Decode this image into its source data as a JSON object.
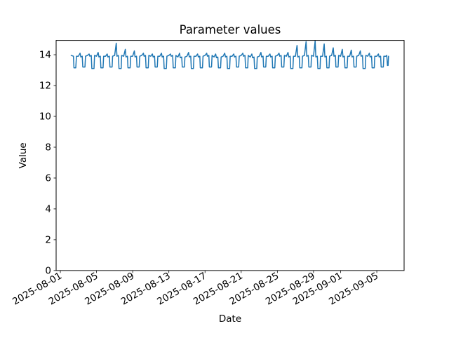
{
  "chart_data": {
    "type": "line",
    "title": "Parameter values",
    "xlabel": "Date",
    "ylabel": "Value",
    "line_color": "#1f77b4",
    "background_color": "#ffffff",
    "grid": false,
    "legend": null,
    "x_unit": "days since 2025-08-01 00:00",
    "x_tick_labels": [
      "2025-08-01",
      "2025-08-05",
      "2025-08-09",
      "2025-08-13",
      "2025-08-17",
      "2025-08-21",
      "2025-08-25",
      "2025-08-29",
      "2025-09-01",
      "2025-09-05"
    ],
    "x_tick_day_offsets": [
      0,
      4,
      8,
      12,
      16,
      20,
      24,
      28,
      31,
      35
    ],
    "y_ticks": [
      0,
      2,
      4,
      6,
      8,
      10,
      12,
      14
    ],
    "xlim_day_offsets": [
      -0.47,
      38.02
    ],
    "ylim": [
      0,
      14.93
    ],
    "points": [
      [
        1.2,
        13.95
      ],
      [
        1.45,
        13.9
      ],
      [
        1.5,
        13.15
      ],
      [
        1.7,
        13.15
      ],
      [
        1.78,
        13.9
      ],
      [
        2,
        13.9
      ],
      [
        2.18,
        14.1
      ],
      [
        2.26,
        13.85
      ],
      [
        2.42,
        13.9
      ],
      [
        2.48,
        13.2
      ],
      [
        2.72,
        13.2
      ],
      [
        2.78,
        13.9
      ],
      [
        3,
        13.95
      ],
      [
        3.18,
        14.05
      ],
      [
        3.26,
        13.9
      ],
      [
        3.42,
        13.95
      ],
      [
        3.48,
        13.1
      ],
      [
        3.72,
        13.1
      ],
      [
        3.78,
        13.95
      ],
      [
        4,
        13.9
      ],
      [
        4.18,
        14.15
      ],
      [
        4.26,
        13.85
      ],
      [
        4.42,
        13.9
      ],
      [
        4.48,
        13.15
      ],
      [
        4.72,
        13.15
      ],
      [
        4.78,
        13.9
      ],
      [
        5,
        13.9
      ],
      [
        5.18,
        14.05
      ],
      [
        5.26,
        13.85
      ],
      [
        5.42,
        13.9
      ],
      [
        5.48,
        13.2
      ],
      [
        5.72,
        13.2
      ],
      [
        5.78,
        13.9
      ],
      [
        6,
        13.95
      ],
      [
        6.18,
        14.75
      ],
      [
        6.26,
        13.9
      ],
      [
        6.42,
        13.95
      ],
      [
        6.48,
        13.1
      ],
      [
        6.72,
        13.1
      ],
      [
        6.78,
        13.95
      ],
      [
        7,
        13.9
      ],
      [
        7.18,
        14.35
      ],
      [
        7.26,
        13.85
      ],
      [
        7.42,
        13.9
      ],
      [
        7.48,
        13.15
      ],
      [
        7.72,
        13.15
      ],
      [
        7.78,
        13.9
      ],
      [
        8,
        13.9
      ],
      [
        8.18,
        14.25
      ],
      [
        8.26,
        13.85
      ],
      [
        8.42,
        13.9
      ],
      [
        8.48,
        13.2
      ],
      [
        8.72,
        13.2
      ],
      [
        8.78,
        13.9
      ],
      [
        9,
        13.95
      ],
      [
        9.18,
        14.1
      ],
      [
        9.26,
        13.9
      ],
      [
        9.42,
        13.95
      ],
      [
        9.48,
        13.15
      ],
      [
        9.72,
        13.15
      ],
      [
        9.78,
        13.95
      ],
      [
        10,
        13.9
      ],
      [
        10.18,
        14.05
      ],
      [
        10.26,
        13.85
      ],
      [
        10.42,
        13.9
      ],
      [
        10.48,
        13.2
      ],
      [
        10.72,
        13.2
      ],
      [
        10.78,
        13.9
      ],
      [
        11,
        13.9
      ],
      [
        11.18,
        14.1
      ],
      [
        11.26,
        13.85
      ],
      [
        11.42,
        13.9
      ],
      [
        11.48,
        13.1
      ],
      [
        11.72,
        13.1
      ],
      [
        11.78,
        13.9
      ],
      [
        12,
        13.95
      ],
      [
        12.18,
        14.05
      ],
      [
        12.26,
        13.9
      ],
      [
        12.42,
        13.95
      ],
      [
        12.48,
        13.15
      ],
      [
        12.72,
        13.15
      ],
      [
        12.78,
        13.95
      ],
      [
        13,
        13.85
      ],
      [
        13.18,
        14.1
      ],
      [
        13.26,
        13.8
      ],
      [
        13.42,
        13.85
      ],
      [
        13.48,
        13.2
      ],
      [
        13.72,
        13.2
      ],
      [
        13.78,
        13.85
      ],
      [
        14,
        13.9
      ],
      [
        14.18,
        14.15
      ],
      [
        14.26,
        13.85
      ],
      [
        14.42,
        13.9
      ],
      [
        14.48,
        13.1
      ],
      [
        14.72,
        13.1
      ],
      [
        14.78,
        13.9
      ],
      [
        15,
        13.9
      ],
      [
        15.18,
        14.05
      ],
      [
        15.26,
        13.85
      ],
      [
        15.42,
        13.9
      ],
      [
        15.48,
        13.15
      ],
      [
        15.72,
        13.15
      ],
      [
        15.78,
        13.9
      ],
      [
        16,
        13.95
      ],
      [
        16.18,
        14.1
      ],
      [
        16.26,
        13.9
      ],
      [
        16.42,
        13.95
      ],
      [
        16.48,
        13.2
      ],
      [
        16.72,
        13.2
      ],
      [
        16.78,
        13.95
      ],
      [
        17,
        13.85
      ],
      [
        17.18,
        14.05
      ],
      [
        17.26,
        13.8
      ],
      [
        17.42,
        13.85
      ],
      [
        17.48,
        13.15
      ],
      [
        17.72,
        13.15
      ],
      [
        17.78,
        13.85
      ],
      [
        18,
        13.9
      ],
      [
        18.18,
        14.1
      ],
      [
        18.26,
        13.85
      ],
      [
        18.42,
        13.9
      ],
      [
        18.48,
        13.1
      ],
      [
        18.72,
        13.1
      ],
      [
        18.78,
        13.9
      ],
      [
        19,
        13.9
      ],
      [
        19.18,
        14.05
      ],
      [
        19.26,
        13.85
      ],
      [
        19.42,
        13.9
      ],
      [
        19.48,
        13.2
      ],
      [
        19.72,
        13.2
      ],
      [
        19.78,
        13.9
      ],
      [
        20,
        13.95
      ],
      [
        20.18,
        14.1
      ],
      [
        20.26,
        13.9
      ],
      [
        20.42,
        13.95
      ],
      [
        20.48,
        13.15
      ],
      [
        20.72,
        13.15
      ],
      [
        20.78,
        13.95
      ],
      [
        21,
        13.85
      ],
      [
        21.18,
        14.05
      ],
      [
        21.26,
        13.8
      ],
      [
        21.42,
        13.85
      ],
      [
        21.48,
        13.1
      ],
      [
        21.72,
        13.1
      ],
      [
        21.78,
        13.85
      ],
      [
        22,
        13.9
      ],
      [
        22.18,
        14.15
      ],
      [
        22.26,
        13.85
      ],
      [
        22.42,
        13.9
      ],
      [
        22.48,
        13.2
      ],
      [
        22.72,
        13.2
      ],
      [
        22.78,
        13.9
      ],
      [
        23,
        13.9
      ],
      [
        23.18,
        14.05
      ],
      [
        23.26,
        13.85
      ],
      [
        23.42,
        13.9
      ],
      [
        23.48,
        13.15
      ],
      [
        23.72,
        13.15
      ],
      [
        23.78,
        13.9
      ],
      [
        24,
        13.95
      ],
      [
        24.18,
        14.1
      ],
      [
        24.26,
        13.9
      ],
      [
        24.42,
        13.95
      ],
      [
        24.48,
        13.2
      ],
      [
        24.72,
        13.2
      ],
      [
        24.78,
        13.95
      ],
      [
        25,
        13.9
      ],
      [
        25.18,
        14.15
      ],
      [
        25.26,
        13.85
      ],
      [
        25.42,
        13.9
      ],
      [
        25.48,
        13.1
      ],
      [
        25.72,
        13.1
      ],
      [
        25.78,
        13.9
      ],
      [
        26,
        13.9
      ],
      [
        26.18,
        14.6
      ],
      [
        26.26,
        13.85
      ],
      [
        26.42,
        13.9
      ],
      [
        26.48,
        13.15
      ],
      [
        26.72,
        13.15
      ],
      [
        26.78,
        13.9
      ],
      [
        27,
        13.95
      ],
      [
        27.18,
        14.85
      ],
      [
        27.26,
        13.9
      ],
      [
        27.42,
        13.95
      ],
      [
        27.48,
        13.2
      ],
      [
        27.72,
        13.2
      ],
      [
        27.78,
        13.95
      ],
      [
        28,
        13.9
      ],
      [
        28.18,
        14.9
      ],
      [
        28.26,
        13.85
      ],
      [
        28.42,
        13.9
      ],
      [
        28.48,
        13.1
      ],
      [
        28.72,
        13.1
      ],
      [
        28.78,
        13.9
      ],
      [
        29,
        13.9
      ],
      [
        29.18,
        14.7
      ],
      [
        29.26,
        13.85
      ],
      [
        29.42,
        13.9
      ],
      [
        29.48,
        13.15
      ],
      [
        29.72,
        13.15
      ],
      [
        29.78,
        13.9
      ],
      [
        30,
        13.95
      ],
      [
        30.18,
        14.45
      ],
      [
        30.26,
        13.9
      ],
      [
        30.42,
        13.95
      ],
      [
        30.48,
        13.2
      ],
      [
        30.72,
        13.2
      ],
      [
        30.78,
        13.95
      ],
      [
        31,
        13.9
      ],
      [
        31.18,
        14.35
      ],
      [
        31.26,
        13.85
      ],
      [
        31.42,
        13.9
      ],
      [
        31.48,
        13.15
      ],
      [
        31.72,
        13.15
      ],
      [
        31.78,
        13.9
      ],
      [
        32,
        13.9
      ],
      [
        32.18,
        14.3
      ],
      [
        32.26,
        13.85
      ],
      [
        32.42,
        13.9
      ],
      [
        32.48,
        13.2
      ],
      [
        32.72,
        13.2
      ],
      [
        32.78,
        13.9
      ],
      [
        33,
        13.95
      ],
      [
        33.18,
        14.25
      ],
      [
        33.26,
        13.9
      ],
      [
        33.42,
        13.95
      ],
      [
        33.48,
        13.1
      ],
      [
        33.72,
        13.1
      ],
      [
        33.78,
        13.95
      ],
      [
        34,
        13.9
      ],
      [
        34.18,
        14.1
      ],
      [
        34.26,
        13.85
      ],
      [
        34.42,
        13.9
      ],
      [
        34.48,
        13.15
      ],
      [
        34.72,
        13.15
      ],
      [
        34.78,
        13.9
      ],
      [
        35,
        13.9
      ],
      [
        35.18,
        14.05
      ],
      [
        35.26,
        13.85
      ],
      [
        35.42,
        13.9
      ],
      [
        35.48,
        13.2
      ],
      [
        35.72,
        13.2
      ],
      [
        35.78,
        13.9
      ],
      [
        36,
        13.9
      ],
      [
        36.1,
        13.95
      ],
      [
        36.18,
        13.3
      ],
      [
        36.25,
        13.3
      ],
      [
        36.3,
        13.9
      ]
    ]
  }
}
